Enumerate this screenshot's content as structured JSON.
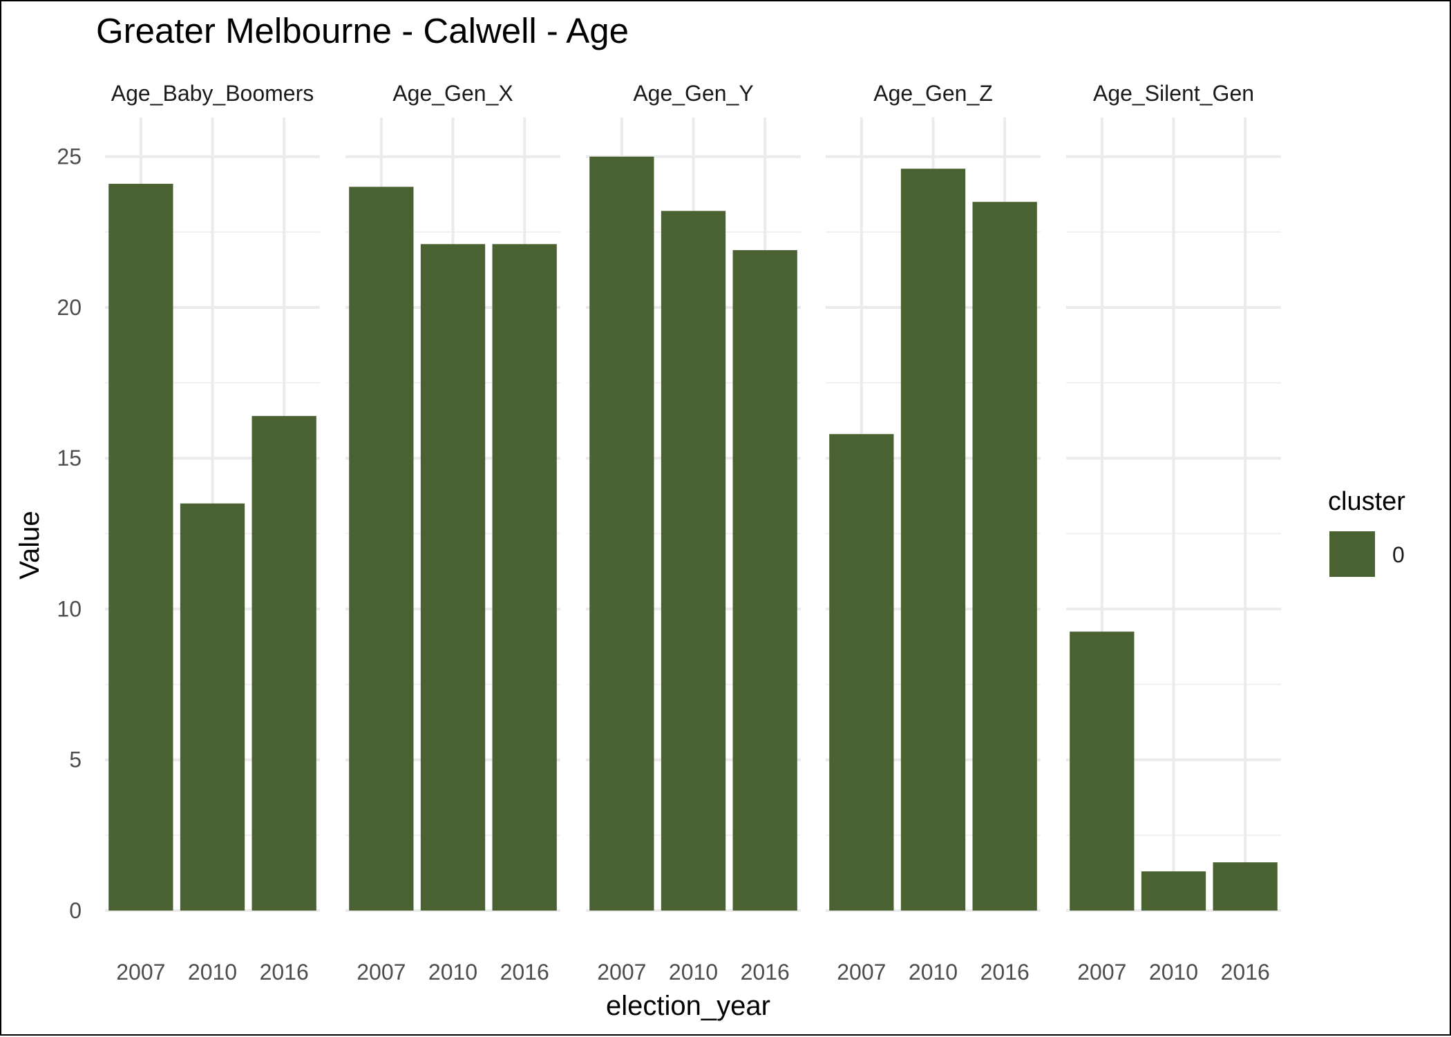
{
  "chart_data": {
    "type": "bar",
    "title": "Greater Melbourne - Calwell - Age",
    "xlabel": "election_year",
    "ylabel": "Value",
    "ylim": [
      0,
      26.3
    ],
    "yticks": [
      0,
      5,
      10,
      15,
      20,
      25
    ],
    "grid": true,
    "bar_color": "#4a6132",
    "categories": [
      "2007",
      "2010",
      "2016"
    ],
    "legend": {
      "title": "cluster",
      "placement": "right",
      "entries": [
        {
          "label": "0",
          "color": "#4a6132"
        }
      ]
    },
    "facets": [
      {
        "name": "Age_Baby_Boomers",
        "values": [
          24.1,
          13.5,
          16.4
        ]
      },
      {
        "name": "Age_Gen_X",
        "values": [
          24.0,
          22.1,
          22.1
        ]
      },
      {
        "name": "Age_Gen_Y",
        "values": [
          25.0,
          23.2,
          21.9
        ]
      },
      {
        "name": "Age_Gen_Z",
        "values": [
          15.8,
          24.6,
          23.5
        ]
      },
      {
        "name": "Age_Silent_Gen",
        "values": [
          9.25,
          1.3,
          1.6
        ]
      }
    ]
  }
}
